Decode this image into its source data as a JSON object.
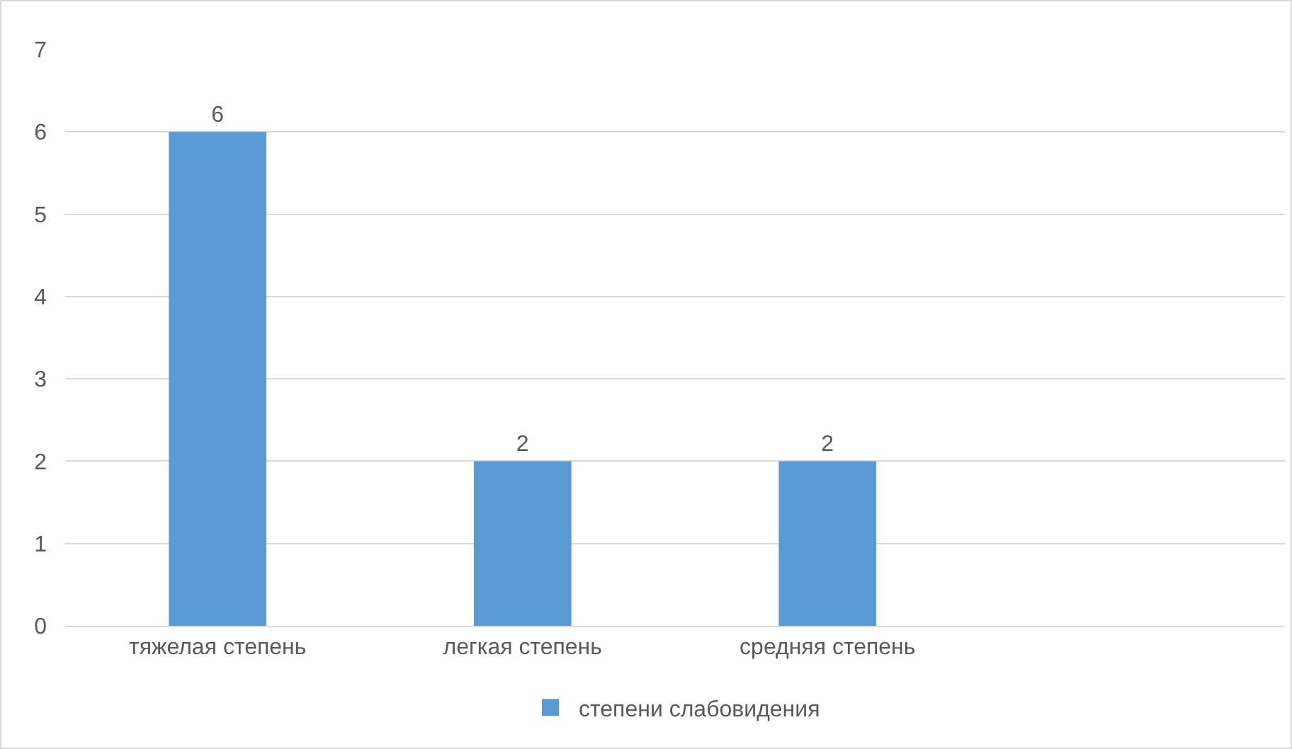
{
  "chart_data": {
    "type": "bar",
    "categories": [
      "тяжелая степень",
      "легкая степень",
      "средняя степень",
      null
    ],
    "series": [
      {
        "name": "степени слабовидения",
        "color": "#5b9bd5",
        "values": [
          6,
          2,
          2,
          null
        ]
      }
    ],
    "ylim": [
      0,
      7
    ],
    "yticks": [
      0,
      1,
      2,
      3,
      4,
      5,
      6,
      7
    ],
    "grid": "y",
    "legend": "bottom",
    "data_labels": true
  }
}
